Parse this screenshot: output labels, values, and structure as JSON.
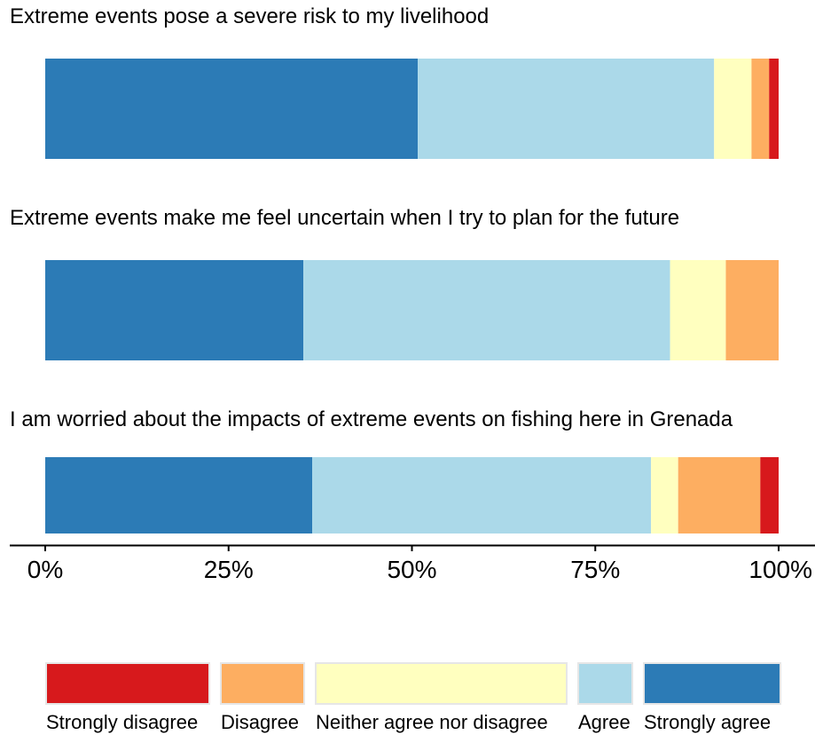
{
  "chart_data": {
    "type": "bar",
    "orientation": "horizontal",
    "stacked": "percent",
    "categories": [
      "Extreme events pose a severe risk to my livelihood",
      "Extreme events make me feel uncertain when I try to plan for the future",
      "I am worried about the impacts of extreme events on fishing here in Grenada"
    ],
    "series": [
      {
        "name": "Strongly agree",
        "color": "#2c7bb6",
        "values": [
          50.8,
          35.2,
          36.4
        ]
      },
      {
        "name": "Agree",
        "color": "#abd9e9",
        "values": [
          40.4,
          50.0,
          46.2
        ]
      },
      {
        "name": "Neither agree nor disagree",
        "color": "#ffffbf",
        "values": [
          5.1,
          7.6,
          3.7
        ]
      },
      {
        "name": "Disagree",
        "color": "#fdae61",
        "values": [
          2.4,
          7.2,
          11.2
        ]
      },
      {
        "name": "Strongly disagree",
        "color": "#d7191c",
        "values": [
          1.3,
          0.0,
          2.5
        ]
      }
    ],
    "xlim": [
      0,
      100
    ],
    "x_ticks": [
      0,
      25,
      50,
      75,
      100
    ],
    "x_tick_labels": [
      "0%",
      "25%",
      "50%",
      "75%",
      "100%"
    ],
    "legend": {
      "position": "bottom",
      "order": [
        "Strongly disagree",
        "Disagree",
        "Neither agree nor disagree",
        "Agree",
        "Strongly agree"
      ]
    },
    "grid": false
  }
}
